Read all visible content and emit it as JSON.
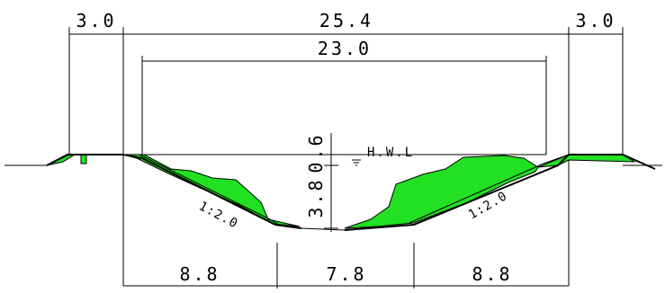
{
  "dimensions": {
    "top_left": "3.0",
    "top_total": "25.4",
    "top_right": "3.0",
    "top_inner": "23.0",
    "bottom_left": "8.8",
    "bottom_middle": "7.8",
    "bottom_right": "8.8",
    "freeboard": "0.6",
    "depth": "3.8"
  },
  "labels": {
    "hwl": "H.W.L",
    "slope_left": "1:2.0",
    "slope_right": "1:2.0"
  },
  "colors": {
    "fill": "#22e022",
    "line": "#000000"
  }
}
